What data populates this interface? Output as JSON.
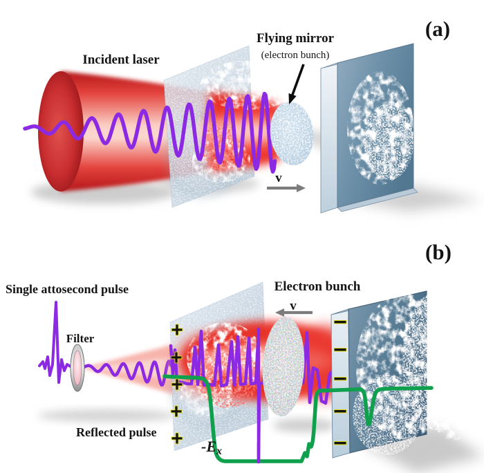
{
  "panel_a": {
    "label": "(a)",
    "incident_laser_label": "Incident laser",
    "flying_mirror_label": "Flying mirror",
    "flying_mirror_sublabel": "(electron bunch)",
    "velocity_label": "v"
  },
  "panel_b": {
    "label": "(b)",
    "attosecond_pulse_label": "Single attosecond pulse",
    "filter_label": "Filter",
    "reflected_pulse_label": "Reflected pulse",
    "electron_bunch_label": "Electron bunch",
    "velocity_label": "v",
    "field_label_main": "-E",
    "field_label_sub": "x",
    "positive_charges": [
      "+",
      "+",
      "+",
      "+",
      "+"
    ],
    "negative_charges": [
      "−",
      "−",
      "−",
      "−",
      "−"
    ]
  },
  "colors": {
    "laser_red": "#e2231f",
    "pulse_purple": "#8b2ae2",
    "field_green": "#0ea04c",
    "charge_yellow": "#f6ef00",
    "arrow_gray": "#7c7c7c",
    "foil_blue": "#c2d1de",
    "slab_blue": "#5a7e96",
    "text_black": "#141414"
  }
}
